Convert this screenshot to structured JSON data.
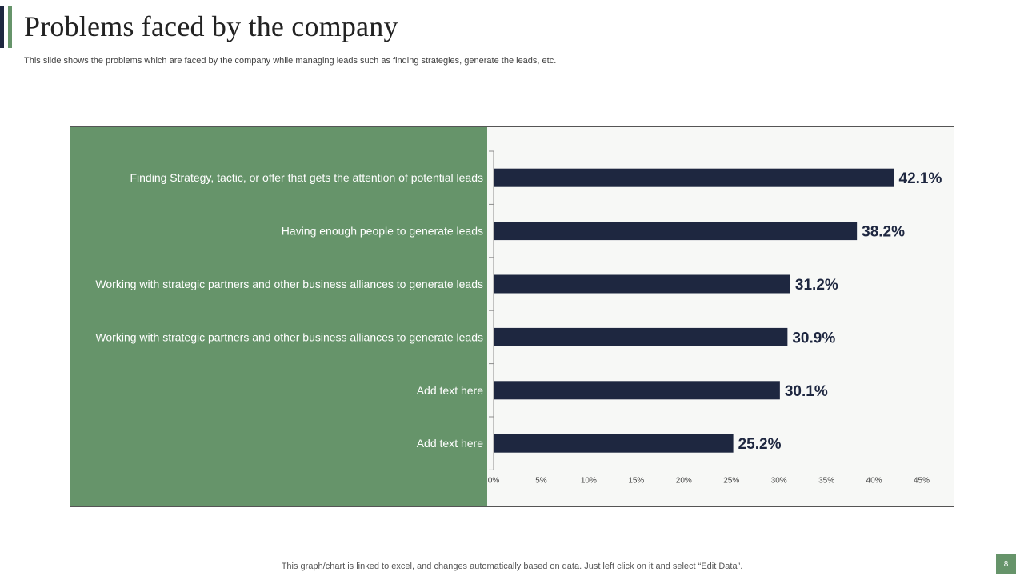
{
  "slide": {
    "title": "Problems faced by the company",
    "subtitle": "This slide shows the problems which are faced by the company while managing leads such as finding strategies, generate the leads, etc.",
    "footer": "This graph/chart is linked to excel,  and changes automatically based on data. Just left click on it and select “Edit Data”.",
    "page_number": "8"
  },
  "colors": {
    "bar": "#1e2740",
    "accent_green": "#66946a",
    "plot_background": "#f7f8f6"
  },
  "chart_data": {
    "type": "bar",
    "orientation": "horizontal",
    "categories": [
      "Finding Strategy, tactic, or offer that gets the attention of potential leads",
      "Having enough people to generate leads",
      "Working with  strategic partners and other business alliances to generate leads",
      "Working with  strategic partners and other business alliances to generate leads",
      "Add text here",
      "Add text here"
    ],
    "values": [
      42.1,
      38.2,
      31.2,
      30.9,
      30.1,
      25.2
    ],
    "value_labels": [
      "42.1%",
      "38.2%",
      "31.2%",
      "30.9%",
      "30.1%",
      "25.2%"
    ],
    "x_ticks": [
      "0%",
      "5%",
      "10%",
      "15%",
      "20%",
      "25%",
      "30%",
      "35%",
      "40%",
      "45%"
    ],
    "xlim": [
      0,
      45
    ],
    "grid": false,
    "legend": "none"
  }
}
